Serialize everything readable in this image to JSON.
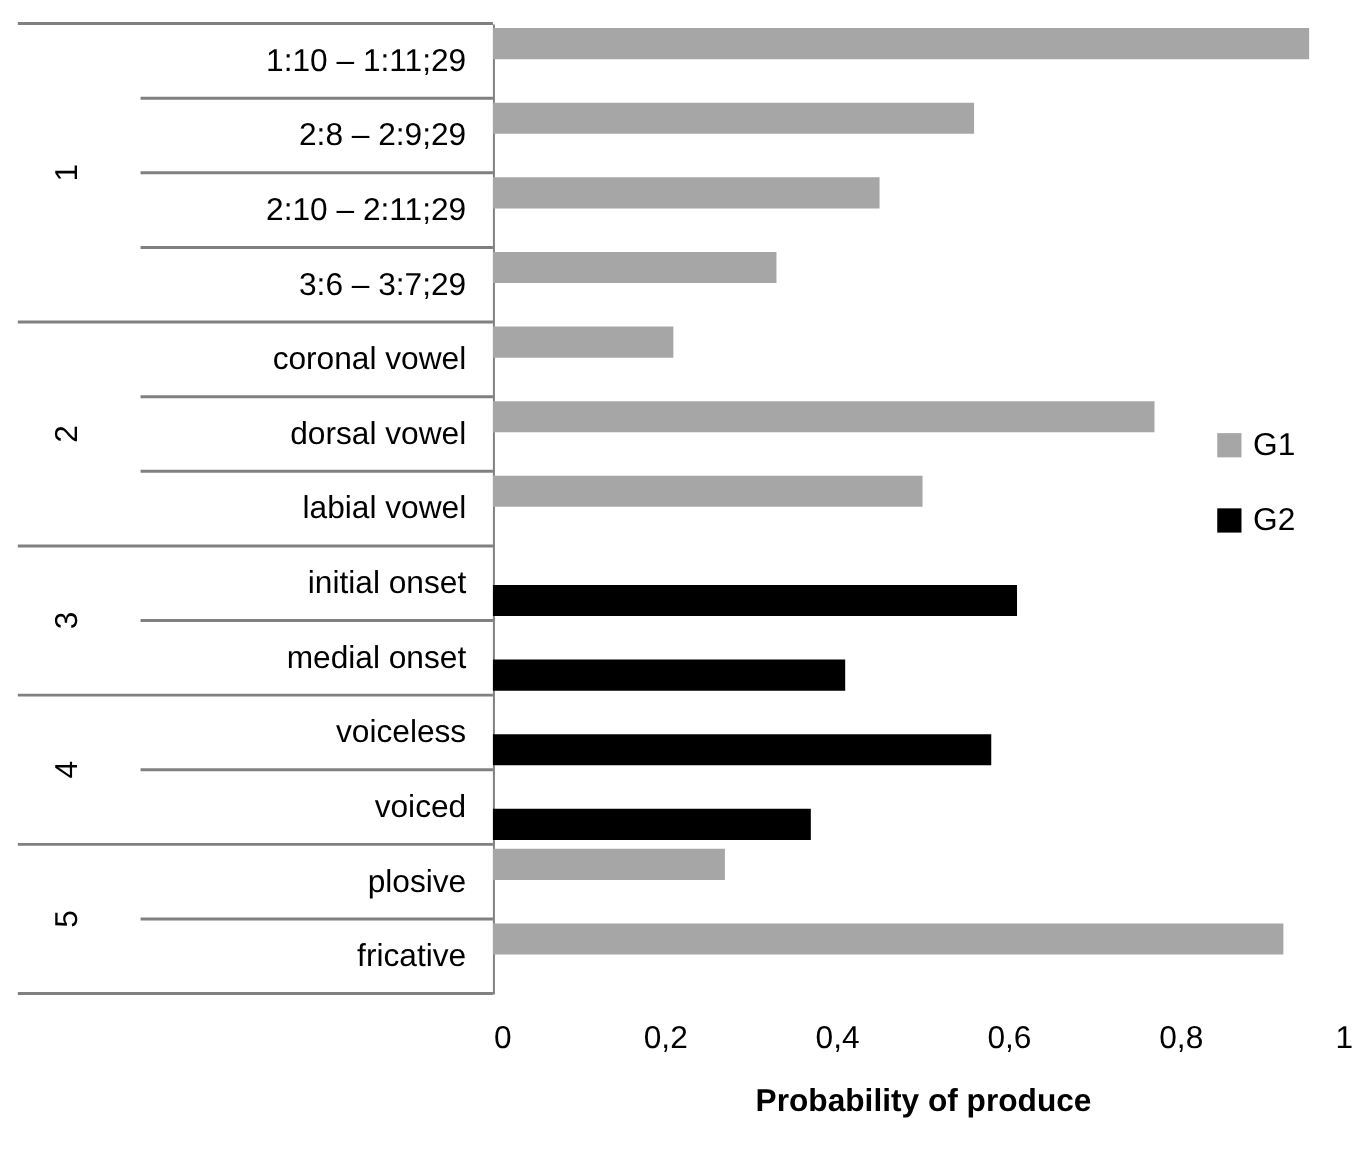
{
  "chart_data": {
    "type": "bar",
    "orientation": "horizontal",
    "xlabel": "Probability of produce",
    "categories": [
      "1:10 – 1:11;29",
      "2:8    – 2:9;29",
      "2:10 – 2:11;29",
      "3:6    – 3:7;29",
      "coronal vowel",
      "dorsal vowel",
      "labial vowel",
      "initial onset",
      "medial onset",
      "voiceless",
      "voiced",
      "plosive",
      "fricative"
    ],
    "series": [
      {
        "name": "G1",
        "color": "#a6a6a6",
        "values": [
          0.95,
          0.56,
          0.45,
          0.33,
          0.21,
          0.77,
          0.5,
          null,
          null,
          null,
          null,
          0.27,
          0.92
        ]
      },
      {
        "name": "G2",
        "color": "#000000",
        "values": [
          null,
          null,
          null,
          null,
          null,
          null,
          null,
          0.61,
          0.41,
          0.58,
          0.37,
          null,
          null
        ]
      }
    ],
    "xlim": [
      0,
      1
    ],
    "xticks": [
      0,
      {
        "value": 0.2,
        "label": "0,2"
      },
      {
        "value": 0.4,
        "label": "0,4"
      },
      {
        "value": 0.6,
        "label": "0,6"
      },
      {
        "value": 0.8,
        "label": "0,8"
      },
      1
    ],
    "annotations": [
      "1",
      "2",
      "3",
      "4",
      "5"
    ],
    "grid": false,
    "legend": "right"
  }
}
